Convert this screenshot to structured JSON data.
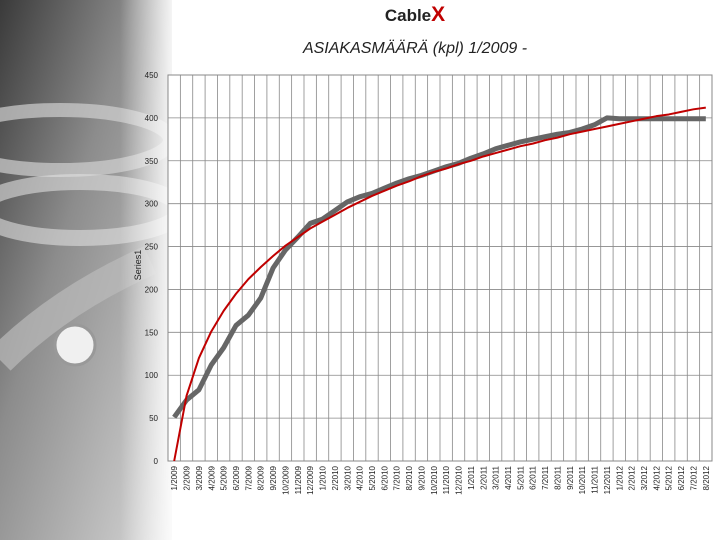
{
  "chart_data": {
    "type": "line",
    "brand": {
      "text": "Cable",
      "accent": "X",
      "accent_color": "#c00000"
    },
    "title": "ASIAKASMÄÄRÄ (kpl) 1/2009 -",
    "y_label": "Series1",
    "categories": [
      "1/2009",
      "2/2009",
      "3/2009",
      "4/2009",
      "5/2009",
      "6/2009",
      "7/2009",
      "8/2009",
      "9/2009",
      "10/2009",
      "11/2009",
      "12/2009",
      "1/2010",
      "2/2010",
      "3/2010",
      "4/2010",
      "5/2010",
      "6/2010",
      "7/2010",
      "8/2010",
      "9/2010",
      "10/2010",
      "11/2010",
      "12/2010",
      "1/2011",
      "2/2011",
      "3/2011",
      "4/2011",
      "5/2011",
      "6/2011",
      "7/2011",
      "8/2011",
      "9/2011",
      "10/2011",
      "11/2011",
      "12/2011",
      "1/2012",
      "2/2012",
      "3/2012",
      "4/2012",
      "5/2012",
      "6/2012",
      "7/2012",
      "8/2012"
    ],
    "series": [
      {
        "name": "Series1",
        "color": "#666666",
        "values": [
          51,
          71,
          83,
          112,
          132,
          158,
          170,
          190,
          225,
          246,
          261,
          277,
          282,
          292,
          302,
          308,
          312,
          318,
          324,
          329,
          333,
          338,
          343,
          347,
          353,
          358,
          364,
          368,
          372,
          375,
          378,
          381,
          383,
          387,
          392,
          400,
          399,
          399,
          399,
          399,
          399,
          399,
          399,
          399
        ]
      }
    ],
    "trend": {
      "color": "#c00000",
      "values": [
        0,
        76,
        120,
        151,
        175,
        195,
        212,
        226,
        239,
        251,
        261,
        271,
        279,
        287,
        295,
        302,
        309,
        315,
        321,
        326,
        332,
        337,
        341,
        346,
        350,
        355,
        359,
        363,
        367,
        370,
        374,
        377,
        381,
        384,
        387,
        390,
        393,
        396,
        399,
        402,
        404,
        407,
        410,
        412
      ]
    },
    "ylim": [
      0,
      450
    ],
    "yticks": [
      0,
      50,
      100,
      150,
      200,
      250,
      300,
      350,
      400,
      450
    ],
    "grid": true
  }
}
